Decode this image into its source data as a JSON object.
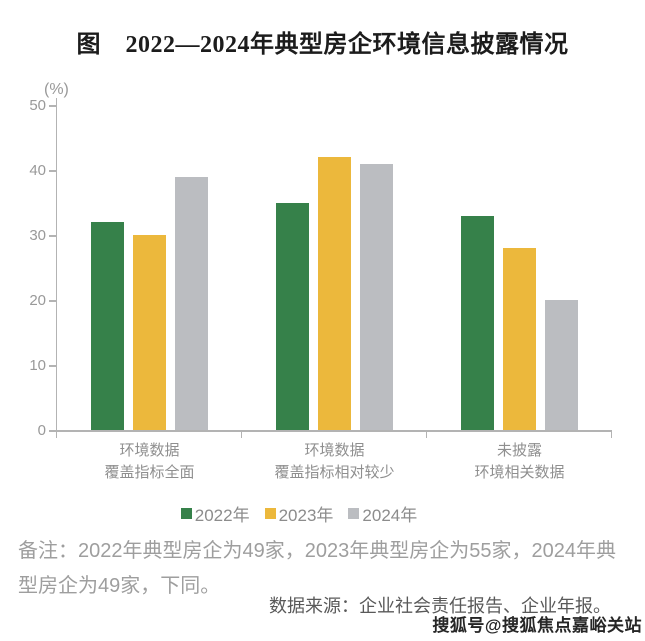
{
  "page": {
    "title": "图　2022—2024年典型房企环境信息披露情况",
    "note": "备注：2022年典型房企为49家，2023年典型房企为55家，2024年典型房企为49家，下同。",
    "source": "数据来源：企业社会责任报告、企业年报。",
    "watermark": "搜狐号@搜狐焦点嘉峪关站"
  },
  "chart_data": {
    "type": "bar",
    "title": "图　2022—2024年典型房企环境信息披露情况",
    "unit_label": "(%)",
    "categories": [
      "环境数据覆盖指标全面",
      "环境数据覆盖指标相对较少",
      "未披露环境相关数据"
    ],
    "category_lines": [
      [
        "环境数据",
        "覆盖指标全面"
      ],
      [
        "环境数据",
        "覆盖指标相对较少"
      ],
      [
        "未披露",
        "环境相关数据"
      ]
    ],
    "series": [
      {
        "name": "2022年",
        "color": "#36814A",
        "values": [
          32,
          35,
          33
        ]
      },
      {
        "name": "2023年",
        "color": "#ECB83C",
        "values": [
          30,
          42,
          28
        ]
      },
      {
        "name": "2024年",
        "color": "#BBBDC1",
        "values": [
          39,
          41,
          20
        ]
      }
    ],
    "ylim": [
      0,
      50
    ],
    "yticks": [
      0,
      10,
      20,
      30,
      40,
      50
    ],
    "grid": false,
    "legend_position": "bottom",
    "axis_color": "#B3B3B3",
    "tick_label_color": "#999999",
    "category_label_color": "#8F8F8F",
    "legend_text_color": "#8C8C8C"
  }
}
